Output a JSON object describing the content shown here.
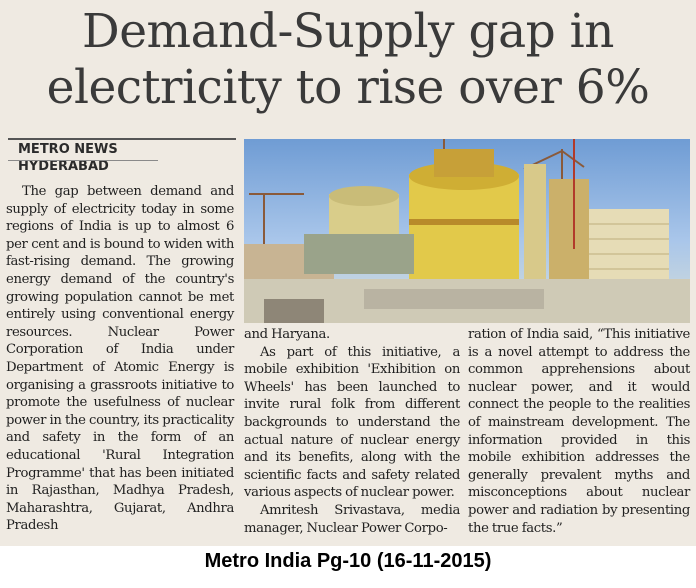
{
  "article": {
    "headline_line1": "Demand-Supply gap in",
    "headline_line2": "electricity to rise over 6%",
    "source_tag": "METRO NEWS",
    "dateline": "HYDERABAD",
    "column1": "The gap between demand and supply of electricity today in some regions of India is up to almost 6 per cent and is bound to widen with fast-rising demand. The growing energy demand of the country's growing population cannot be met entirely using conventional energy resources. Nuclear Power Corporation of India under Department of Atomic Energy is organising a grassroots initiative to promote the usefulness of nuclear power in the country, its practicality and safety in the form of an educational 'Rural Integration Programme' that has been initiated in Rajasthan, Madhya Pradesh, Maharashtra, Gujarat, Andhra Pradesh",
    "column2_a": "and Haryana.",
    "column2_b": "As part of this initiative, a mobile exhibition 'Exhibition on Wheels' has been launched to invite rural folk from different backgrounds to understand the actual nature of nuclear energy and its benefits, along with the scientific facts and safety related various aspects of nuclear power.",
    "column2_c": "Amritesh Srivastava, media manager, Nuclear Power Corpo-",
    "column3": "ration of India said, “This initiative is a novel attempt to address the common apprehensions about nuclear power, and it would connect the people to the realities of mainstream development. The information provided in this mobile exhibition addresses the generally prevalent myths and misconceptions about nuclear power and radiation by presenting the true facts.”"
  },
  "caption": "Metro India Pg-10 (16-11-2015)",
  "colors": {
    "paper": "#efeae2",
    "headline": "#3a3a3a",
    "sky": "#6f9cd4",
    "reactor_yellow": "#e2c94a"
  }
}
